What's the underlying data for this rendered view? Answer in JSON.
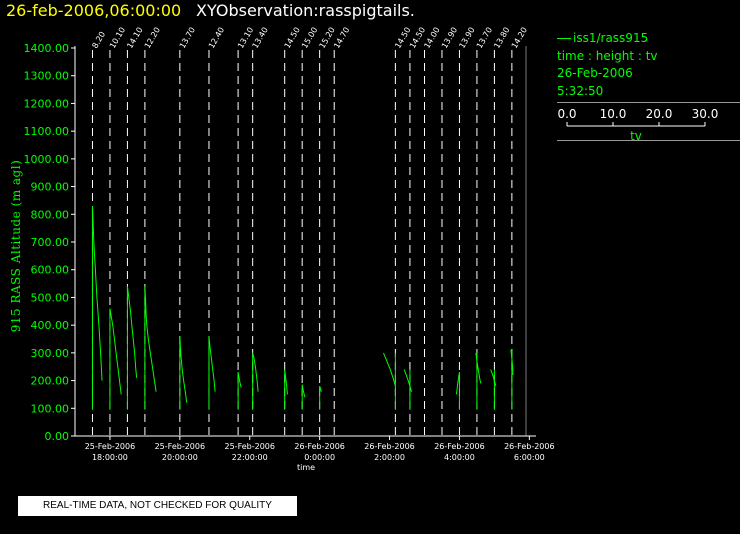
{
  "header": {
    "date_time": "26-feb-2006,06:00:00",
    "title": "XYObservation:rasspigtails."
  },
  "legend": {
    "series_label": "iss1/rass915",
    "description": "time : height : tv",
    "date": "26-Feb-2006",
    "time": "5:32:50",
    "scale_ticks": [
      "0.0",
      "10.0",
      "20.0",
      "30.0"
    ],
    "scale_values": [
      0,
      10,
      20,
      30
    ],
    "scale_label": "tv"
  },
  "banner": {
    "text": "REAL-TIME DATA, NOT CHECKED FOR QUALITY"
  },
  "colors": {
    "axis": "#ffffff",
    "trace": "#00ff00",
    "y_ticks": "#00ff00",
    "title_date": "#ffff00",
    "profile_rule": "#ffffff"
  },
  "chart_data": {
    "type": "line",
    "ylabel": "915 RASS Altitude (m agl)",
    "xlabel": "time",
    "ylim": [
      0,
      1400
    ],
    "xlim": [
      "2006-02-25 17:00",
      "2006-02-26 06:20"
    ],
    "y_ticks": [
      "0.00",
      "100.00",
      "200.00",
      "300.00",
      "400.00",
      "500.00",
      "600.00",
      "700.00",
      "800.00",
      "900.00",
      "1000.00",
      "1100.00",
      "1200.00",
      "1300.00",
      "1400.00"
    ],
    "x_ticks": [
      {
        "t": "2006-02-25 18:00",
        "date": "25-Feb-2006",
        "time": "18:00:00"
      },
      {
        "t": "2006-02-25 20:00",
        "date": "25-Feb-2006",
        "time": "20:00:00"
      },
      {
        "t": "2006-02-25 22:00",
        "date": "25-Feb-2006",
        "time": "22:00:00"
      },
      {
        "t": "2006-02-26 00:00",
        "date": "26-Feb-2006",
        "time": "0:00:00"
      },
      {
        "t": "2006-02-26 02:00",
        "date": "26-Feb-2006",
        "time": "2:00:00"
      },
      {
        "t": "2006-02-26 04:00",
        "date": "26-Feb-2006",
        "time": "4:00:00"
      },
      {
        "t": "2006-02-26 06:00",
        "date": "26-Feb-2006",
        "time": "6:00:00"
      }
    ],
    "profiles": [
      {
        "t": "2006-02-25 17:30",
        "label": "8.20",
        "points": [
          [
            0.0,
            830
          ],
          [
            0.2,
            800
          ],
          [
            0.8,
            700
          ],
          [
            1.7,
            600
          ],
          [
            2.6,
            500
          ],
          [
            3.8,
            400
          ],
          [
            4.8,
            300
          ],
          [
            5.6,
            200
          ]
        ]
      },
      {
        "t": "2006-02-25 18:00",
        "label": "10.10",
        "points": [
          [
            0.0,
            460
          ],
          [
            0.8,
            430
          ],
          [
            1.6,
            400
          ],
          [
            2.6,
            350
          ],
          [
            3.6,
            300
          ],
          [
            4.6,
            250
          ],
          [
            5.6,
            200
          ],
          [
            6.6,
            150
          ]
        ]
      },
      {
        "t": "2006-02-25 18:30",
        "label": "14.10",
        "points": [
          [
            0.0,
            540
          ],
          [
            0.8,
            500
          ],
          [
            1.8,
            450
          ],
          [
            2.6,
            400
          ],
          [
            3.4,
            350
          ],
          [
            4.2,
            300
          ],
          [
            4.8,
            250
          ],
          [
            5.4,
            210
          ]
        ]
      },
      {
        "t": "2006-02-25 19:00",
        "label": "12.20",
        "points": [
          [
            0.0,
            540
          ],
          [
            0.4,
            490
          ],
          [
            0.7,
            440
          ],
          [
            1.1,
            400
          ],
          [
            2.0,
            350
          ],
          [
            3.2,
            300
          ],
          [
            4.4,
            250
          ],
          [
            5.6,
            200
          ],
          [
            6.6,
            160
          ]
        ]
      },
      {
        "t": "2006-02-25 20:00",
        "label": "13.70",
        "points": [
          [
            0.0,
            360
          ],
          [
            0.3,
            320
          ],
          [
            0.8,
            280
          ],
          [
            1.4,
            240
          ],
          [
            2.2,
            200
          ],
          [
            3.2,
            160
          ],
          [
            4.0,
            120
          ]
        ]
      },
      {
        "t": "2006-02-25 20:50",
        "label": "12.40",
        "points": [
          [
            0.0,
            360
          ],
          [
            0.6,
            320
          ],
          [
            1.4,
            280
          ],
          [
            2.2,
            240
          ],
          [
            3.0,
            200
          ],
          [
            3.6,
            160
          ]
        ]
      },
      {
        "t": "2006-02-25 21:40",
        "label": "13.10",
        "points": [
          [
            0.0,
            230
          ],
          [
            0.6,
            210
          ],
          [
            1.2,
            190
          ],
          [
            1.8,
            175
          ]
        ]
      },
      {
        "t": "2006-02-25 22:05",
        "label": "13.40",
        "points": [
          [
            0.0,
            300
          ],
          [
            0.8,
            280
          ],
          [
            1.6,
            250
          ],
          [
            2.6,
            200
          ],
          [
            3.2,
            160
          ]
        ]
      },
      {
        "t": "2006-02-25 23:00",
        "label": "14.50",
        "points": [
          [
            0.0,
            240
          ],
          [
            0.6,
            210
          ],
          [
            1.2,
            180
          ],
          [
            1.6,
            150
          ]
        ]
      },
      {
        "t": "2006-02-25 23:30",
        "label": "15.00",
        "points": [
          [
            0.0,
            185
          ],
          [
            0.8,
            160
          ],
          [
            1.6,
            140
          ]
        ]
      },
      {
        "t": "2006-02-26 00:00",
        "label": "15.20",
        "points": [
          [
            0.0,
            180
          ],
          [
            0.6,
            170
          ],
          [
            1.0,
            160
          ]
        ]
      },
      {
        "t": "2006-02-26 00:25",
        "label": "14.70",
        "points": []
      },
      {
        "t": "2006-02-26 02:10",
        "label": "14.50",
        "points": [
          [
            -7.0,
            300
          ],
          [
            -5.0,
            270
          ],
          [
            -3.0,
            240
          ],
          [
            -1.4,
            210
          ],
          [
            0.0,
            180
          ]
        ]
      },
      {
        "t": "2006-02-26 02:35",
        "label": "14.50",
        "points": [
          [
            -3.4,
            240
          ],
          [
            -2.2,
            220
          ],
          [
            -1.0,
            200
          ],
          [
            0.0,
            180
          ],
          [
            1.0,
            160
          ]
        ]
      },
      {
        "t": "2006-02-26 03:00",
        "label": "14.00",
        "points": []
      },
      {
        "t": "2006-02-26 03:30",
        "label": "13.90",
        "points": []
      },
      {
        "t": "2006-02-26 04:00",
        "label": "13.90",
        "points": [
          [
            0.0,
            230
          ],
          [
            -0.8,
            200
          ],
          [
            -1.4,
            170
          ],
          [
            -1.8,
            150
          ]
        ]
      },
      {
        "t": "2006-02-26 04:30",
        "label": "13.70",
        "points": [
          [
            -0.6,
            300
          ],
          [
            0.0,
            270
          ],
          [
            0.8,
            240
          ],
          [
            1.6,
            210
          ],
          [
            2.2,
            190
          ]
        ]
      },
      {
        "t": "2006-02-26 05:00",
        "label": "13.80",
        "points": [
          [
            -2.2,
            240
          ],
          [
            -1.0,
            220
          ],
          [
            0.0,
            200
          ],
          [
            0.8,
            180
          ]
        ]
      },
      {
        "t": "2006-02-26 05:30",
        "label": "14.20",
        "points": [
          [
            -0.6,
            310
          ],
          [
            0.0,
            280
          ],
          [
            0.4,
            250
          ],
          [
            0.6,
            220
          ]
        ]
      }
    ]
  }
}
